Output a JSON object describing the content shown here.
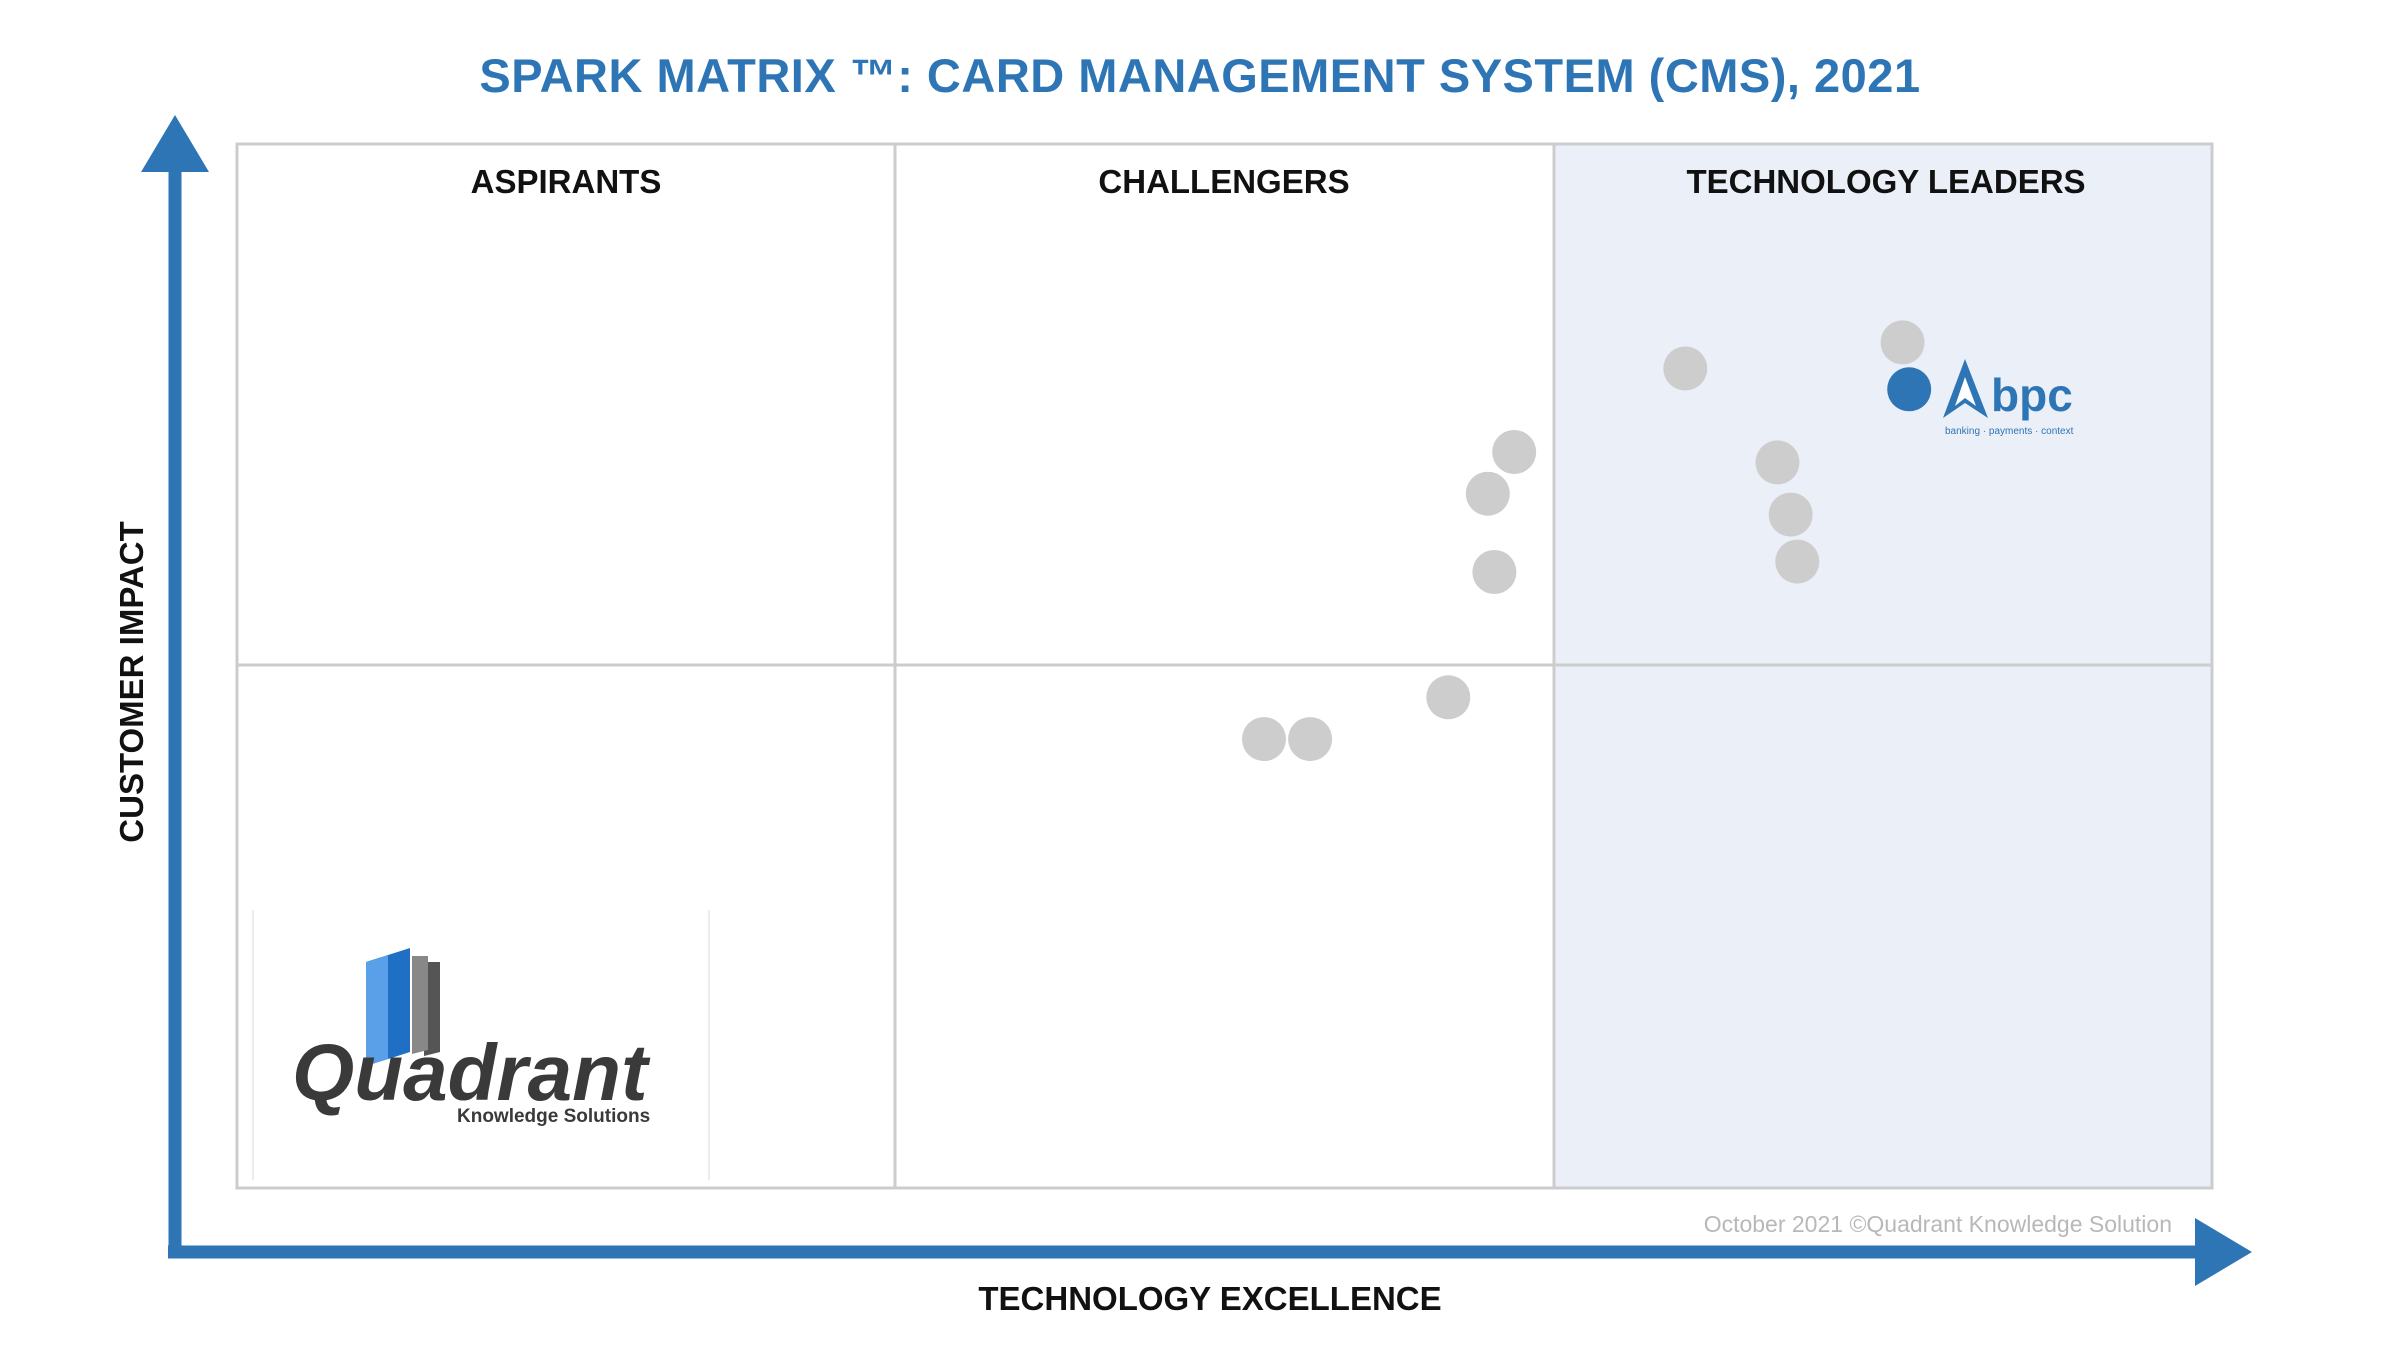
{
  "colors": {
    "title": "#2e75b6",
    "axis": "#2e75b6",
    "leader_bg": "#eaeff8",
    "grid": "#cccccc",
    "vendor": "#cdcdcd",
    "highlight": "#2e75b6"
  },
  "logo": {
    "name": "Quadrant",
    "subtitle": "Knowledge Solutions"
  },
  "highlight_logo": {
    "name": "bpc",
    "tagline": "banking · payments · context"
  },
  "chart_data": {
    "type": "scatter",
    "title": "SPARK MATRIX ™: CARD MANAGEMENT SYSTEM (CMS), 2021",
    "xlabel": "TECHNOLOGY EXCELLENCE",
    "ylabel": "CUSTOMER IMPACT",
    "xlim": [
      0,
      3
    ],
    "ylim": [
      0,
      2
    ],
    "quadrants": [
      "ASPIRANTS",
      "CHALLENGERS",
      "TECHNOLOGY LEADERS"
    ],
    "copyright": "October 2021 ©Quadrant Knowledge Solution",
    "points": [
      {
        "x": 2.53,
        "y": 1.62,
        "highlight": false
      },
      {
        "x": 2.2,
        "y": 1.57,
        "highlight": false
      },
      {
        "x": 2.54,
        "y": 1.53,
        "highlight": true
      },
      {
        "x": 2.34,
        "y": 1.39,
        "highlight": false
      },
      {
        "x": 2.36,
        "y": 1.29,
        "highlight": false
      },
      {
        "x": 2.37,
        "y": 1.2,
        "highlight": false
      },
      {
        "x": 1.94,
        "y": 1.41,
        "highlight": false
      },
      {
        "x": 1.9,
        "y": 1.33,
        "highlight": false
      },
      {
        "x": 1.91,
        "y": 1.18,
        "highlight": false
      },
      {
        "x": 1.84,
        "y": 0.94,
        "highlight": false
      },
      {
        "x": 1.56,
        "y": 0.86,
        "highlight": false
      },
      {
        "x": 1.63,
        "y": 0.86,
        "highlight": false
      }
    ]
  }
}
